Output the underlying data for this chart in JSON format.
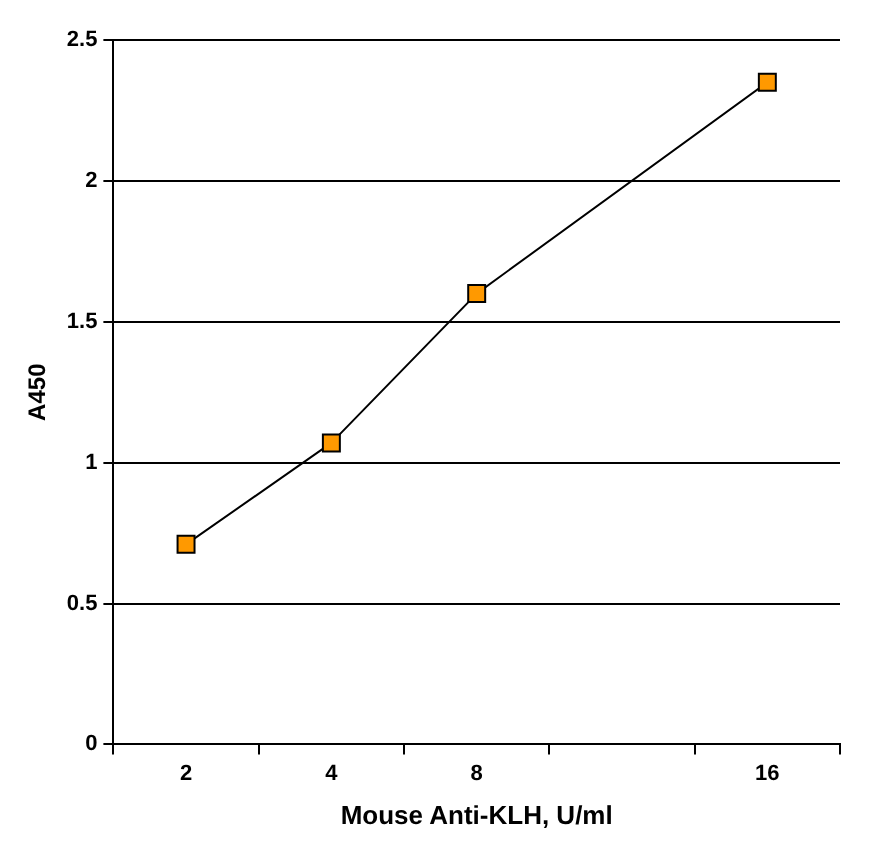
{
  "chart_data": {
    "type": "line",
    "xlabel": "Mouse Anti-KLH, U/ml",
    "ylabel": "A450",
    "categories": [
      "2",
      "4",
      "8",
      null,
      "16"
    ],
    "series": [
      {
        "color": "#ff9900",
        "values": [
          0.71,
          1.07,
          1.6,
          null,
          2.35
        ]
      }
    ],
    "ylim": [
      0,
      2.5
    ],
    "yticks": [
      0,
      0.5,
      1,
      1.5,
      2,
      2.5
    ],
    "grid": "y",
    "legend": false,
    "marker": "square",
    "line_style": "solid"
  }
}
